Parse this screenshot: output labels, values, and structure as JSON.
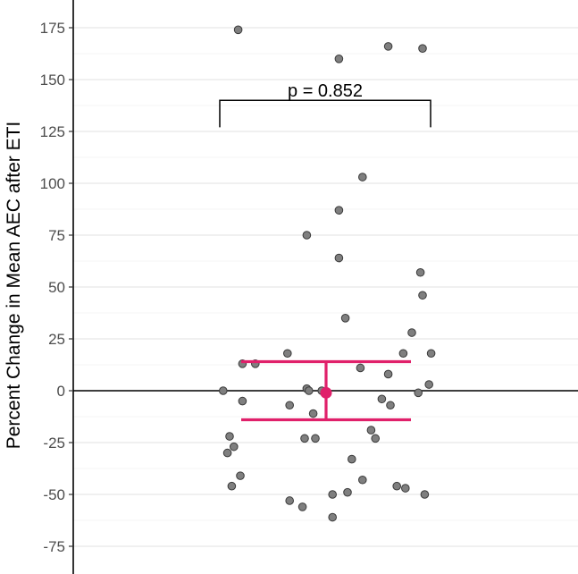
{
  "chart_data": {
    "type": "scatter",
    "title": "",
    "xlabel": "",
    "ylabel": "Percent Change in Mean AEC after ETI",
    "ylim": [
      -87,
      182
    ],
    "yticks": [
      175,
      150,
      125,
      100,
      75,
      50,
      25,
      0,
      -25,
      -50,
      -75
    ],
    "grid": "horizontal major lines",
    "reference_line_y": 0,
    "points": [
      {
        "x": 0.09,
        "y": 174
      },
      {
        "x": 0.56,
        "y": 160
      },
      {
        "x": 0.79,
        "y": 166
      },
      {
        "x": 0.95,
        "y": 165
      },
      {
        "x": 0.67,
        "y": 103
      },
      {
        "x": 0.56,
        "y": 87
      },
      {
        "x": 0.41,
        "y": 75
      },
      {
        "x": 0.56,
        "y": 64
      },
      {
        "x": 0.94,
        "y": 57
      },
      {
        "x": 0.95,
        "y": 46
      },
      {
        "x": 0.59,
        "y": 35
      },
      {
        "x": 0.9,
        "y": 28
      },
      {
        "x": 0.32,
        "y": 18
      },
      {
        "x": 0.86,
        "y": 18
      },
      {
        "x": 0.99,
        "y": 18
      },
      {
        "x": 0.11,
        "y": 13
      },
      {
        "x": 0.17,
        "y": 13
      },
      {
        "x": 0.66,
        "y": 11
      },
      {
        "x": 0.79,
        "y": 8
      },
      {
        "x": 0.98,
        "y": 3
      },
      {
        "x": 0.41,
        "y": 1
      },
      {
        "x": 0.42,
        "y": 0
      },
      {
        "x": 0.48,
        "y": 0
      },
      {
        "x": 0.02,
        "y": 0
      },
      {
        "x": 0.93,
        "y": -1
      },
      {
        "x": 0.76,
        "y": -4
      },
      {
        "x": 0.11,
        "y": -5
      },
      {
        "x": 0.8,
        "y": -7
      },
      {
        "x": 0.33,
        "y": -7
      },
      {
        "x": 0.44,
        "y": -11
      },
      {
        "x": 0.71,
        "y": -19
      },
      {
        "x": 0.05,
        "y": -22
      },
      {
        "x": 0.73,
        "y": -23
      },
      {
        "x": 0.4,
        "y": -23
      },
      {
        "x": 0.45,
        "y": -23
      },
      {
        "x": 0.07,
        "y": -27
      },
      {
        "x": 0.04,
        "y": -30
      },
      {
        "x": 0.62,
        "y": -33
      },
      {
        "x": 0.1,
        "y": -41
      },
      {
        "x": 0.67,
        "y": -43
      },
      {
        "x": 0.06,
        "y": -46
      },
      {
        "x": 0.83,
        "y": -46
      },
      {
        "x": 0.87,
        "y": -47
      },
      {
        "x": 0.6,
        "y": -49
      },
      {
        "x": 0.53,
        "y": -50
      },
      {
        "x": 0.96,
        "y": -50
      },
      {
        "x": 0.33,
        "y": -53
      },
      {
        "x": 0.39,
        "y": -56
      },
      {
        "x": 0.53,
        "y": -61
      }
    ],
    "summary": {
      "mean": -1,
      "upper": 14,
      "lower": -14
    },
    "comparison": {
      "label": "p = 0.852",
      "y": 140,
      "left_tick_bottom": 127,
      "right_tick_bottom": 127
    },
    "colors": {
      "point_fill": "#7f7f7f",
      "point_stroke": "#3a3a3a",
      "summary": "#e0206a",
      "grid": "#e6e6e6",
      "axis": "#000000"
    }
  }
}
